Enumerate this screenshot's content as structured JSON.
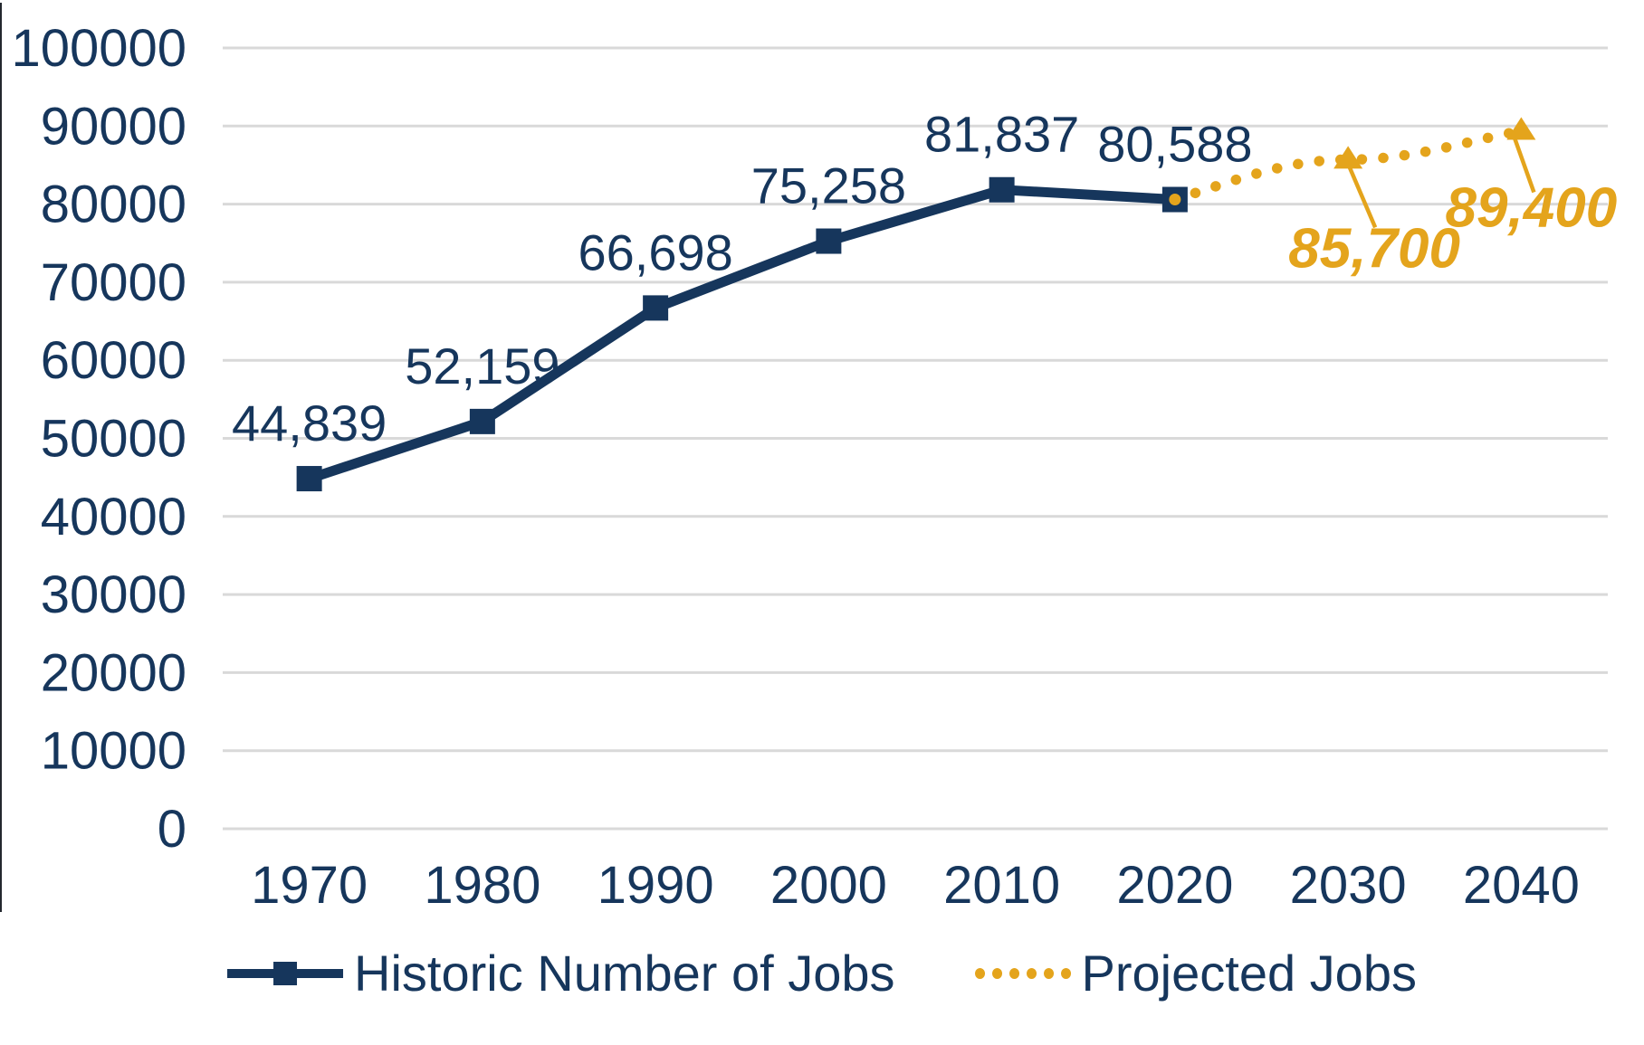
{
  "chart_data": {
    "type": "line",
    "title": "",
    "xlabel": "",
    "ylabel": "",
    "categories": [
      "1970",
      "1980",
      "1990",
      "2000",
      "2010",
      "2020",
      "2030",
      "2040"
    ],
    "series": [
      {
        "name": "Historic Number of Jobs",
        "line_style": "solid",
        "marker": "square",
        "color": "#16365C",
        "x_indices": [
          0,
          1,
          2,
          3,
          4,
          5
        ],
        "values": [
          44839,
          52159,
          66698,
          75258,
          81837,
          80588
        ],
        "data_labels": [
          "44,839",
          "52,159",
          "66,698",
          "75,258",
          "81,837",
          "80,588"
        ]
      },
      {
        "name": "Projected Jobs",
        "line_style": "dotted",
        "marker": "triangle",
        "color": "#E4A41C",
        "x_indices": [
          5,
          6,
          7
        ],
        "values": [
          80588,
          85700,
          89400
        ],
        "data_labels": [
          null,
          "85,700",
          "89,400"
        ],
        "callout_labels": true
      }
    ],
    "ylim": [
      0,
      100000
    ],
    "ytick_step": 10000,
    "yticks": [
      "0",
      "10000",
      "20000",
      "30000",
      "40000",
      "50000",
      "60000",
      "70000",
      "80000",
      "90000",
      "100000"
    ],
    "grid": "horizontal",
    "gridline_color": "#D9D9D9",
    "axis_text_color": "#16365C",
    "background": "#FFFFFF",
    "legend_position": "bottom"
  },
  "legend": {
    "items": [
      {
        "label": "Historic Number of Jobs"
      },
      {
        "label": "Projected Jobs"
      }
    ]
  }
}
